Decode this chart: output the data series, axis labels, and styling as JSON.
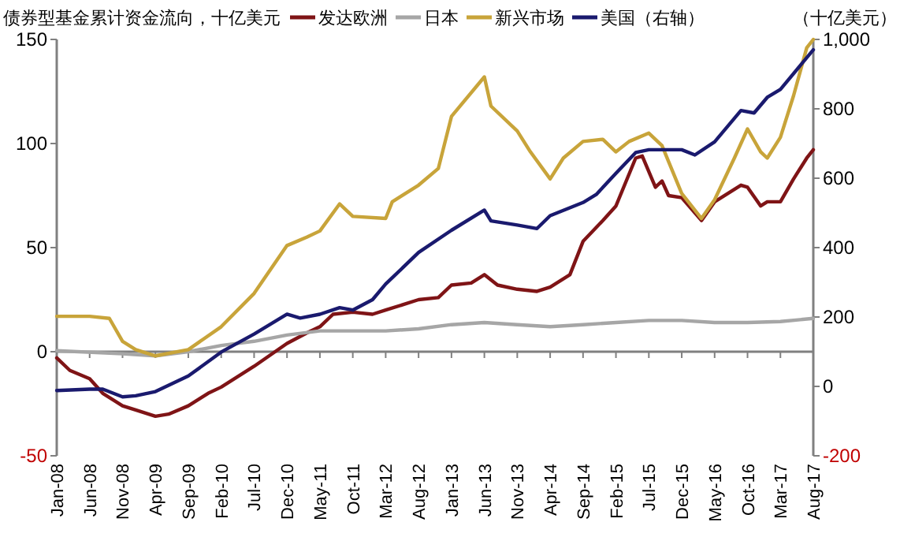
{
  "chart_data": {
    "type": "line",
    "title": "债券型基金累计资金流向，十亿美元",
    "y2label": "（十亿美元）",
    "legend": "top",
    "line_style": "solid",
    "marker": "none",
    "xlim": [
      "2008-01",
      "2017-08"
    ],
    "xticks": [
      {
        "value": "2008-01",
        "label": "Jan-08"
      },
      {
        "value": "2008-06",
        "label": "Jun-08"
      },
      {
        "value": "2008-11",
        "label": "Nov-08"
      },
      {
        "value": "2009-04",
        "label": "Apr-09"
      },
      {
        "value": "2009-09",
        "label": "Sep-09"
      },
      {
        "value": "2010-02",
        "label": "Feb-10"
      },
      {
        "value": "2010-07",
        "label": "Jul-10"
      },
      {
        "value": "2010-12",
        "label": "Dec-10"
      },
      {
        "value": "2011-05",
        "label": "May-11"
      },
      {
        "value": "2011-10",
        "label": "Oct-11"
      },
      {
        "value": "2012-03",
        "label": "Mar-12"
      },
      {
        "value": "2012-08",
        "label": "Aug-12"
      },
      {
        "value": "2013-01",
        "label": "Jan-13"
      },
      {
        "value": "2013-06",
        "label": "Jun-13"
      },
      {
        "value": "2013-11",
        "label": "Nov-13"
      },
      {
        "value": "2014-04",
        "label": "Apr-14"
      },
      {
        "value": "2014-09",
        "label": "Sep-14"
      },
      {
        "value": "2015-02",
        "label": "Feb-15"
      },
      {
        "value": "2015-07",
        "label": "Jul-15"
      },
      {
        "value": "2015-12",
        "label": "Dec-15"
      },
      {
        "value": "2016-05",
        "label": "May-16"
      },
      {
        "value": "2016-10",
        "label": "Oct-16"
      },
      {
        "value": "2017-03",
        "label": "Mar-17"
      },
      {
        "value": "2017-08",
        "label": "Aug-17"
      }
    ],
    "ylim": [
      -50,
      150
    ],
    "yticks": [
      -50,
      0,
      50,
      100,
      150
    ],
    "y2lim": [
      -200,
      1000
    ],
    "y2ticks": [
      -200,
      0,
      200,
      400,
      600,
      800,
      {
        "value": 1000,
        "label": "1,000"
      }
    ],
    "series": [
      {
        "name": "发达欧洲",
        "color": "#7f1416",
        "x": [
          "2008-01",
          "2008-03",
          "2008-06",
          "2008-08",
          "2008-11",
          "2009-01",
          "2009-04",
          "2009-06",
          "2009-09",
          "2009-12",
          "2010-02",
          "2010-07",
          "2010-12",
          "2011-03",
          "2011-05",
          "2011-07",
          "2011-10",
          "2012-01",
          "2012-03",
          "2012-08",
          "2012-11",
          "2013-01",
          "2013-04",
          "2013-06",
          "2013-08",
          "2013-11",
          "2014-02",
          "2014-04",
          "2014-07",
          "2014-09",
          "2014-12",
          "2015-02",
          "2015-05",
          "2015-06",
          "2015-08",
          "2015-09",
          "2015-10",
          "2015-12",
          "2016-03",
          "2016-05",
          "2016-07",
          "2016-09",
          "2016-10",
          "2016-12",
          "2017-01",
          "2017-03",
          "2017-05",
          "2017-07",
          "2017-08"
        ],
        "values": [
          -3,
          -9,
          -13,
          -20,
          -26,
          -28,
          -31,
          -30,
          -26,
          -20,
          -17,
          -7,
          4,
          9,
          12,
          18,
          19,
          18,
          20,
          25,
          26,
          32,
          33,
          37,
          32,
          30,
          29,
          31,
          37,
          53,
          63,
          70,
          93,
          94,
          79,
          82,
          75,
          74,
          63,
          72,
          76,
          80,
          79,
          70,
          72,
          72,
          83,
          93,
          97
        ]
      },
      {
        "name": "日本",
        "color": "#a6a6a6",
        "x": [
          "2008-01",
          "2008-11",
          "2009-04",
          "2009-09",
          "2010-02",
          "2010-07",
          "2010-12",
          "2011-05",
          "2011-10",
          "2012-03",
          "2012-08",
          "2013-01",
          "2013-06",
          "2013-11",
          "2014-04",
          "2014-09",
          "2015-02",
          "2015-07",
          "2015-12",
          "2016-05",
          "2016-10",
          "2017-03",
          "2017-08"
        ],
        "values": [
          0.5,
          -1,
          -2,
          0,
          3,
          5,
          8,
          10,
          10,
          10,
          11,
          13,
          14,
          13,
          12,
          13,
          14,
          15,
          15,
          14,
          14,
          14.5,
          16
        ]
      },
      {
        "name": "新兴市场",
        "color": "#c8a43a",
        "x": [
          "2008-01",
          "2008-06",
          "2008-09",
          "2008-11",
          "2009-01",
          "2009-04",
          "2009-09",
          "2010-02",
          "2010-07",
          "2010-12",
          "2011-03",
          "2011-05",
          "2011-08",
          "2011-10",
          "2012-03",
          "2012-04",
          "2012-08",
          "2012-11",
          "2013-01",
          "2013-06",
          "2013-07",
          "2013-11",
          "2014-01",
          "2014-04",
          "2014-06",
          "2014-09",
          "2014-12",
          "2015-02",
          "2015-04",
          "2015-07",
          "2015-09",
          "2015-12",
          "2016-03",
          "2016-05",
          "2016-08",
          "2016-10",
          "2016-12",
          "2017-01",
          "2017-03",
          "2017-05",
          "2017-07",
          "2017-08"
        ],
        "values": [
          17,
          17,
          16,
          5,
          1,
          -2,
          1,
          12,
          28,
          51,
          55,
          58,
          71,
          65,
          64,
          72,
          80,
          88,
          113,
          132,
          118,
          106,
          96,
          83,
          93,
          101,
          102,
          96,
          101,
          105,
          99,
          76,
          64,
          73,
          93,
          107,
          96,
          93,
          103,
          123,
          146,
          150
        ]
      },
      {
        "name": "美国（右轴）",
        "color": "#1a1a6e",
        "axis": "y2",
        "x": [
          "2008-01",
          "2008-06",
          "2008-08",
          "2008-11",
          "2009-01",
          "2009-04",
          "2009-09",
          "2010-02",
          "2010-07",
          "2010-12",
          "2011-02",
          "2011-05",
          "2011-08",
          "2011-10",
          "2012-01",
          "2012-03",
          "2012-08",
          "2013-01",
          "2013-06",
          "2013-07",
          "2013-11",
          "2014-02",
          "2014-04",
          "2014-09",
          "2014-11",
          "2015-02",
          "2015-05",
          "2015-07",
          "2015-12",
          "2016-02",
          "2016-05",
          "2016-09",
          "2016-11",
          "2017-01",
          "2017-03",
          "2017-08"
        ],
        "values": [
          -12,
          -8,
          -8,
          -30,
          -27,
          -15,
          30,
          99,
          151,
          208,
          197,
          208,
          227,
          220,
          250,
          295,
          386,
          450,
          508,
          477,
          465,
          455,
          492,
          530,
          553,
          614,
          674,
          682,
          682,
          667,
          705,
          795,
          788,
          833,
          856,
          970
        ]
      }
    ]
  }
}
